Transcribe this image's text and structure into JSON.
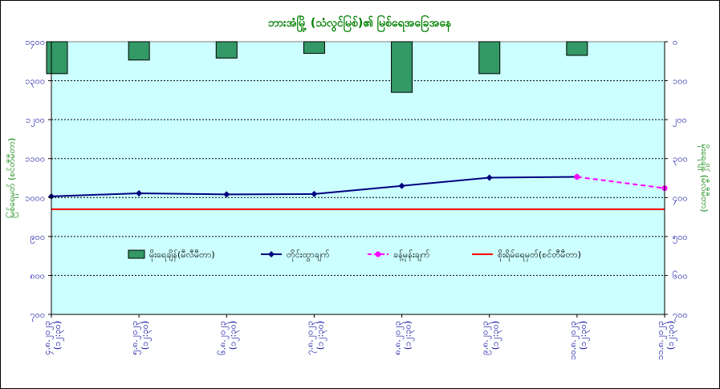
{
  "chart_data": {
    "type": "bar+line",
    "title": "ဘားအံမြို့ (သံလွင်မြစ်)၏ မြစ်ရေအခြေအနေ",
    "left_axis": {
      "label": "မြစ်ရေမှတ် (စင်တီမီတာ)",
      "ylim": [
        700,
        1400
      ],
      "ticks": [
        700,
        800,
        900,
        1000,
        1100,
        1200,
        1300,
        1400
      ],
      "tick_labels": [
        "၇၀၀",
        "၈၀၀",
        "၉၀၀",
        "၁၀၀၀",
        "၁၁၀၀",
        "၁၂၀၀",
        "၁၃၀၀",
        "၁၄၀၀"
      ]
    },
    "right_axis": {
      "label": "မိုးရေချိန် (မီလီမီတာ)",
      "ylim": [
        0,
        700
      ],
      "inverted": true,
      "ticks": [
        0,
        100,
        200,
        300,
        400,
        500,
        600,
        700
      ],
      "tick_labels": [
        "၀",
        "၁၀၀",
        "၂၀၀",
        "၃၀၀",
        "၄၀၀",
        "၅၀၀",
        "၆၀၀",
        "၇၀၀"
      ]
    },
    "categories": [
      "၄.၈.၂၀၂၃ (၁၂:၃၀)",
      "၅.၈.၂၀၂၃ (၁၂:၃၀)",
      "၆.၈.၂၀၂၃ (၁၂:၃၀)",
      "၇.၈.၂၀၂၃ (၁၂:၃၀)",
      "၈.၈.၂၀၂၃ (၁၂:၃၀)",
      "၉.၈.၂၀၂၃ (၁၂:၃၀)",
      "၁၀.၈.၂၀၂၃ (၁၂:၃၀)",
      "၁၁.၈.၂၀၂၃ (၁၂:၃၀)"
    ],
    "series": [
      {
        "name": "မိုးရေချိန်(မီလီမီတာ)",
        "type": "bar",
        "axis": "right",
        "color": "#339966",
        "values": [
          82,
          47,
          42,
          30,
          130,
          82,
          35,
          null
        ]
      },
      {
        "name": "တိုင်းထွာချက်",
        "type": "line",
        "axis": "left",
        "color": "#000080",
        "marker": "diamond",
        "values": [
          1003,
          1011,
          1008,
          1009,
          1030,
          1051,
          1053,
          null
        ]
      },
      {
        "name": "ခန့်မှန်းချက်",
        "type": "line",
        "axis": "left",
        "color": "#ff00ff",
        "dashed": true,
        "marker": "circle",
        "values": [
          null,
          null,
          null,
          null,
          null,
          null,
          1053,
          1024
        ]
      },
      {
        "name": "စိုးရိမ်ရေမှတ်(စင်တီမီတာ)",
        "type": "hline",
        "axis": "left",
        "color": "#ff0000",
        "value": 970
      }
    ],
    "plot_background": "#ccffff",
    "gridlines": "dashed-horizontal",
    "legend_position": "inside-lower"
  }
}
